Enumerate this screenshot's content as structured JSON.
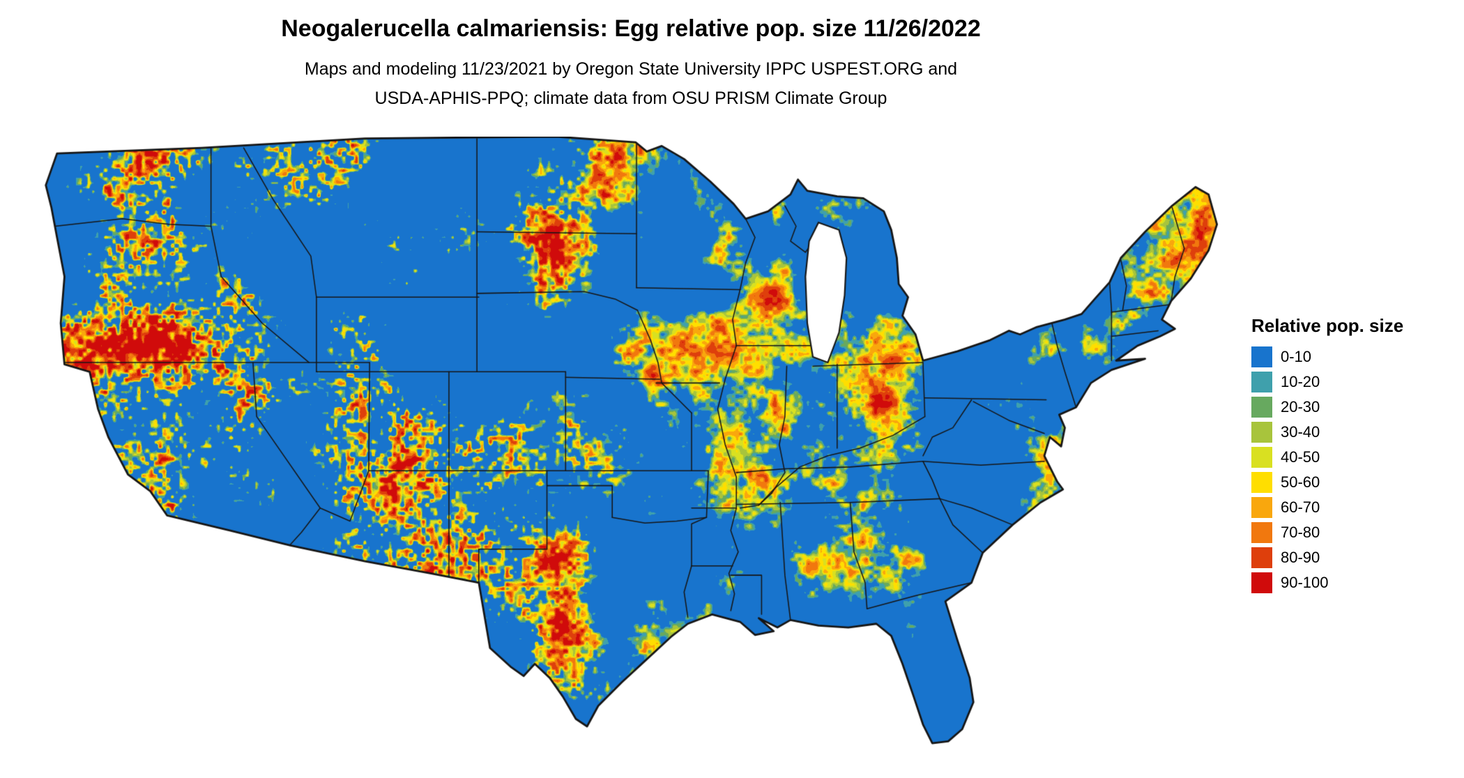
{
  "title": "Neogalerucella calmariensis: Egg relative pop. size 11/26/2022",
  "subtitle_line1": "Maps and modeling 11/23/2021 by Oregon State University IPPC USPEST.ORG and",
  "subtitle_line2": "USDA-APHIS-PPQ; climate data from OSU PRISM Climate Group",
  "legend": {
    "title": "Relative pop. size",
    "items": [
      {
        "label": "0-10",
        "color": "#1874CD"
      },
      {
        "label": "10-20",
        "color": "#3FA0AC"
      },
      {
        "label": "20-30",
        "color": "#67A95F"
      },
      {
        "label": "30-40",
        "color": "#A8C43C"
      },
      {
        "label": "40-50",
        "color": "#D9E021"
      },
      {
        "label": "50-60",
        "color": "#FFDE00"
      },
      {
        "label": "60-70",
        "color": "#F9A70D"
      },
      {
        "label": "70-80",
        "color": "#F1780E"
      },
      {
        "label": "80-90",
        "color": "#DE3F0C"
      },
      {
        "label": "90-100",
        "color": "#D00B0B"
      }
    ]
  },
  "map": {
    "region": "Contiguous United States",
    "land_base_color": "#1874CD",
    "border_color": "#161616",
    "water_color": "#FFFFFF"
  }
}
